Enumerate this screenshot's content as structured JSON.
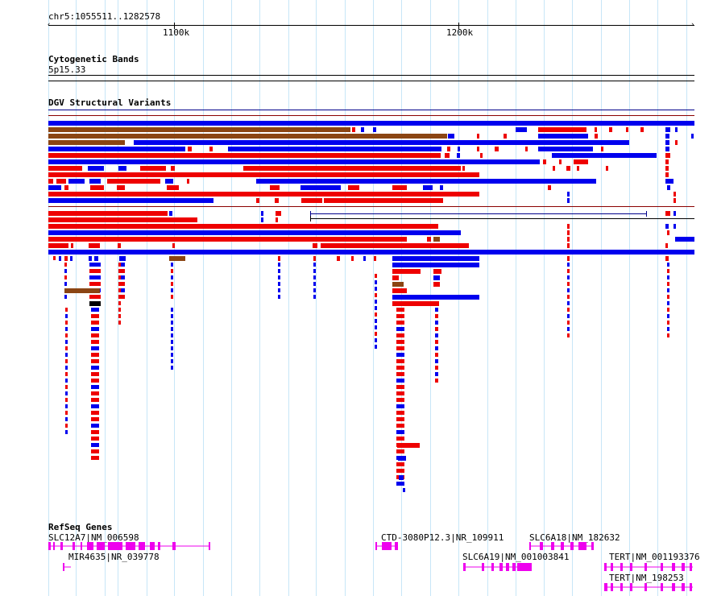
{
  "ruler": {
    "location_label": "chr5:1055511..1282578",
    "ticks": [
      "1100k",
      "1200k"
    ]
  },
  "tracks": {
    "cytoband": {
      "title": "Cytogenetic Bands",
      "band": "5p15.33"
    },
    "dgv": {
      "title": "DGV Structural Variants"
    },
    "refseq": {
      "title": "RefSeq Genes",
      "genes": [
        {
          "name": "SLC12A7|NM_006598"
        },
        {
          "name": "MIR4635|NR_039778"
        },
        {
          "name": "CTD-3080P12.3|NR_109911"
        },
        {
          "name": "SLC6A18|NM_182632"
        },
        {
          "name": "SLC6A19|NM_001003841"
        },
        {
          "name": "TERT|NM_001193376"
        },
        {
          "name": "TERT|NM_198253"
        }
      ]
    }
  },
  "colors": {
    "gain": "#0000ee",
    "loss": "#ee0000",
    "gain_loss": "#8b4513",
    "other": "#000000",
    "gene": "#ee00ee",
    "grid": "#c7e6f7"
  }
}
